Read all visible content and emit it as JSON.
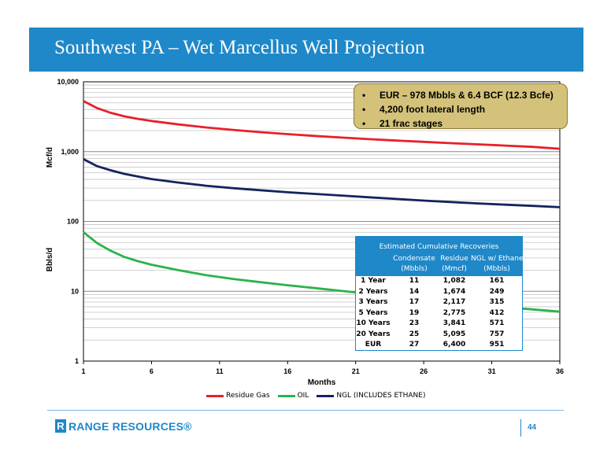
{
  "title": "Southwest PA – Wet Marcellus Well Projection",
  "chart_data": {
    "type": "line",
    "scale_y": "log",
    "ylim": [
      1,
      10000
    ],
    "xlim": [
      1,
      36
    ],
    "xlabel": "Months",
    "ylabel_top": "Mcf/d",
    "ylabel_bottom": "Bbls/d",
    "x_ticks": [
      "1",
      "6",
      "11",
      "16",
      "21",
      "26",
      "31",
      "36"
    ],
    "y_ticks": [
      "10,000",
      "1,000",
      "100",
      "10",
      "1"
    ],
    "grid": true,
    "legend_position": "bottom",
    "x": [
      1,
      2,
      3,
      4,
      5,
      6,
      8,
      10,
      12,
      14,
      16,
      18,
      20,
      22,
      24,
      26,
      28,
      30,
      32,
      34,
      36
    ],
    "series": [
      {
        "name": "Residue Gas",
        "color": "#e8202a",
        "values": [
          5300,
          4200,
          3600,
          3200,
          2950,
          2750,
          2450,
          2220,
          2050,
          1900,
          1780,
          1680,
          1590,
          1510,
          1440,
          1380,
          1320,
          1270,
          1220,
          1170,
          1100
        ]
      },
      {
        "name": "OIL",
        "color": "#2ab34a",
        "values": [
          70,
          49,
          38,
          31,
          27,
          24,
          20,
          17,
          15,
          13.5,
          12.2,
          11.1,
          10.1,
          9.2,
          8.4,
          7.7,
          7.0,
          6.4,
          5.9,
          5.5,
          5.1
        ]
      },
      {
        "name": "NGL (INCLUDES ETHANE)",
        "color": "#14245e",
        "values": [
          780,
          620,
          540,
          480,
          440,
          405,
          360,
          325,
          300,
          280,
          262,
          248,
          235,
          222,
          210,
          199,
          190,
          181,
          174,
          167,
          160
        ]
      }
    ]
  },
  "callout": {
    "bullets": [
      "EUR – 978 Mbbls & 6.4 BCF (12.3 Bcfe)",
      "4,200 foot lateral length",
      "21 frac stages"
    ],
    "bullet_char": "•"
  },
  "table": {
    "title": "Estimated Cumulative Recoveries",
    "headers": [
      [
        "Condensate",
        "(Mbbls)"
      ],
      [
        "Residue",
        "(Mmcf)"
      ],
      [
        "NGL w/ Ethane",
        "(Mbbls)"
      ]
    ],
    "rows": [
      [
        "1 Year",
        "11",
        "1,082",
        "161"
      ],
      [
        "2 Years",
        "14",
        "1,674",
        "249"
      ],
      [
        "3 Years",
        "17",
        "2,117",
        "315"
      ],
      [
        "5 Years",
        "19",
        "2,775",
        "412"
      ],
      [
        "10 Years",
        "23",
        "3,841",
        "571"
      ],
      [
        "20 Years",
        "25",
        "5,095",
        "757"
      ],
      [
        "EUR",
        "27",
        "6,400",
        "951"
      ]
    ]
  },
  "footer": {
    "logo_text": "RANGE RESOURCES®",
    "logo_mark": "R",
    "page_number": "44"
  }
}
